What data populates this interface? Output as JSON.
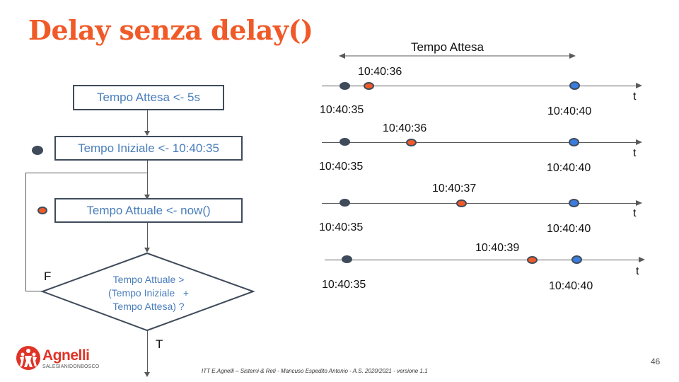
{
  "title": "Delay senza delay()",
  "flowchart": {
    "box1": "Tempo Attesa <- 5s",
    "box2": "Tempo Iniziale <- 10:40:35",
    "box3": "Tempo Attuale <- now()",
    "decision": "Tempo Attuale >\n(Tempo Iniziale   +\nTempo Attesa) ?",
    "false_label": "F",
    "true_label": "T"
  },
  "timeline": {
    "span_label": "Tempo Attesa",
    "axis_label": "t",
    "rows": [
      {
        "start": "10:40:35",
        "current": "10:40:36",
        "end": "10:40:40"
      },
      {
        "start": "10:40:35",
        "current": "10:40:36",
        "end": "10:40:40"
      },
      {
        "start": "10:40:35",
        "current": "10:40:37",
        "end": "10:40:40"
      },
      {
        "start": "10:40:35",
        "current": "10:40:39",
        "end": "10:40:40"
      }
    ]
  },
  "colors": {
    "accent": "#f05a28",
    "dark": "#3f4b5b",
    "blue": "#3b7ddd",
    "text_blue": "#4a7ebb"
  },
  "footer": "ITT E.Agnelli – Sistemi & Reti - Mancuso  Espedito Antonio - A.S. 2020/2021 - versione 1.1",
  "page_number": "46",
  "logo": {
    "name": "Agnelli",
    "subtitle": "SALESIANIDONBOSCO",
    "icon": "people-logo-icon"
  }
}
